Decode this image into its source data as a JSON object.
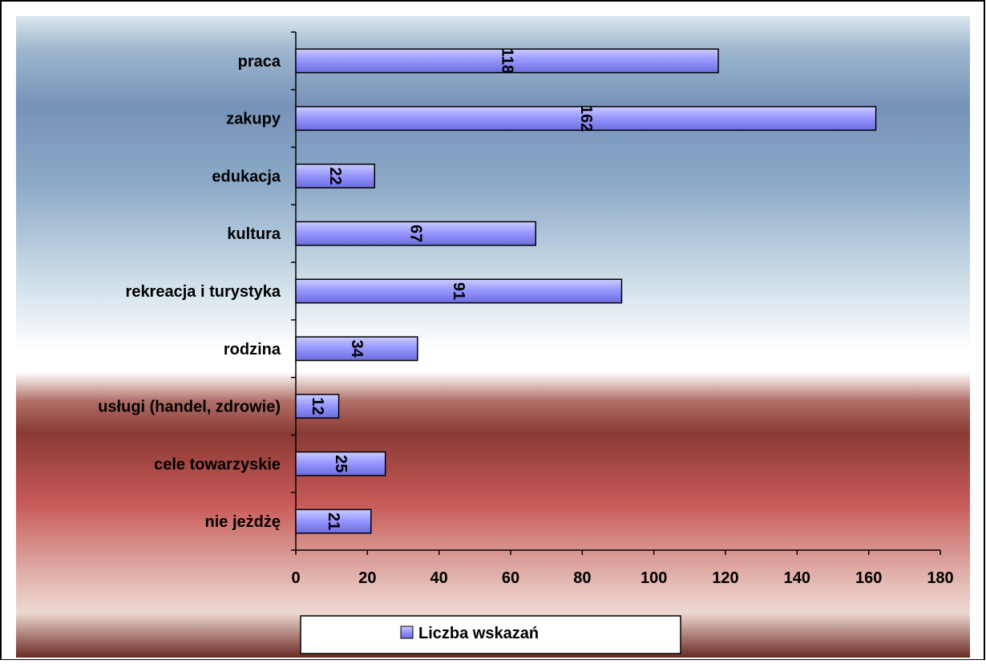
{
  "chart_data": {
    "type": "bar",
    "orientation": "horizontal",
    "title": "",
    "xlabel": "",
    "ylabel": "",
    "categories": [
      "praca",
      "zakupy",
      "edukacja",
      "kultura",
      "rekreacja i turystyka",
      "rodzina",
      "usługi (handel, zdrowie)",
      "cele towarzyskie",
      "nie jeżdżę"
    ],
    "series": [
      {
        "name": "Liczba wskazań",
        "values": [
          118,
          162,
          22,
          67,
          91,
          34,
          12,
          25,
          21
        ],
        "color": "#9999ff"
      }
    ],
    "xlim": [
      0,
      180
    ],
    "xticks": [
      "0",
      "20",
      "40",
      "60",
      "80",
      "100",
      "120",
      "140",
      "160",
      "180"
    ],
    "data_labels": true,
    "grid": false,
    "legend_position": "bottom"
  }
}
